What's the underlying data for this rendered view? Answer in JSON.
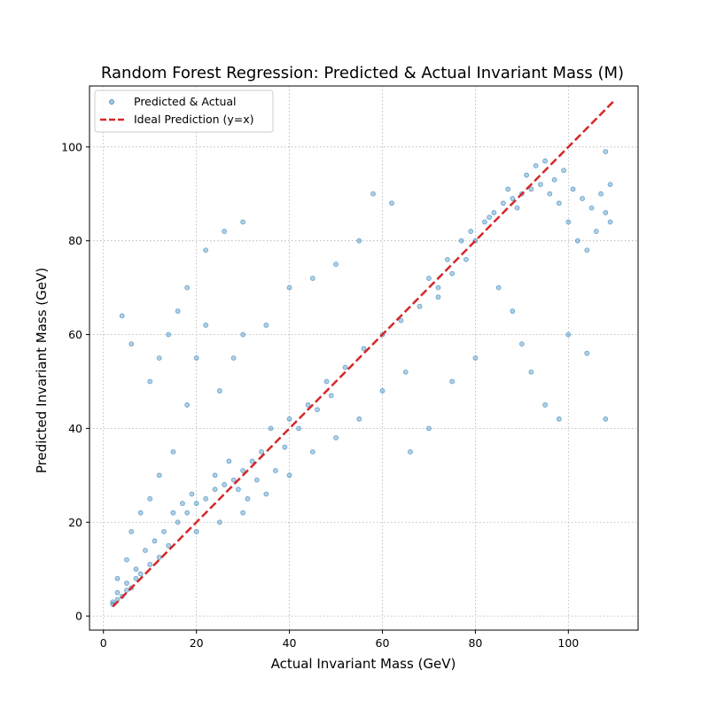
{
  "chart_data": {
    "type": "scatter",
    "title": "Random Forest Regression: Predicted & Actual Invariant Mass (M)",
    "xlabel": "Actual Invariant Mass (GeV)",
    "ylabel": "Predicted Invariant Mass (GeV)",
    "xlim": [
      -3,
      115
    ],
    "ylim": [
      -3,
      113
    ],
    "xticks": [
      0,
      20,
      40,
      60,
      80,
      100
    ],
    "yticks": [
      0,
      20,
      40,
      60,
      80,
      100
    ],
    "grid": true,
    "legend_position": "top-left",
    "series": [
      {
        "name": "Predicted & Actual",
        "kind": "scatter",
        "color": "#1f77b4",
        "points": [
          [
            2,
            2.5
          ],
          [
            3,
            3.5
          ],
          [
            4,
            4.2
          ],
          [
            5,
            5.5
          ],
          [
            6,
            6
          ],
          [
            7,
            8
          ],
          [
            8,
            9
          ],
          [
            10,
            11
          ],
          [
            12,
            12.5
          ],
          [
            14,
            15
          ],
          [
            3,
            8
          ],
          [
            5,
            12
          ],
          [
            6,
            18
          ],
          [
            8,
            22
          ],
          [
            10,
            25
          ],
          [
            12,
            30
          ],
          [
            15,
            35
          ],
          [
            18,
            45
          ],
          [
            20,
            55
          ],
          [
            22,
            62
          ],
          [
            16,
            20
          ],
          [
            18,
            22
          ],
          [
            20,
            24
          ],
          [
            22,
            25
          ],
          [
            24,
            27
          ],
          [
            26,
            28
          ],
          [
            28,
            29
          ],
          [
            30,
            31
          ],
          [
            32,
            33
          ],
          [
            34,
            35
          ],
          [
            20,
            18
          ],
          [
            25,
            20
          ],
          [
            30,
            22
          ],
          [
            35,
            26
          ],
          [
            40,
            30
          ],
          [
            45,
            35
          ],
          [
            50,
            38
          ],
          [
            55,
            42
          ],
          [
            60,
            48
          ],
          [
            65,
            52
          ],
          [
            36,
            40
          ],
          [
            40,
            42
          ],
          [
            44,
            45
          ],
          [
            48,
            50
          ],
          [
            52,
            53
          ],
          [
            56,
            57
          ],
          [
            60,
            60
          ],
          [
            64,
            63
          ],
          [
            68,
            66
          ],
          [
            72,
            70
          ],
          [
            75,
            73
          ],
          [
            78,
            76
          ],
          [
            80,
            80
          ],
          [
            82,
            84
          ],
          [
            84,
            86
          ],
          [
            86,
            88
          ],
          [
            88,
            89
          ],
          [
            90,
            90
          ],
          [
            92,
            91
          ],
          [
            94,
            92
          ],
          [
            96,
            90
          ],
          [
            98,
            88
          ],
          [
            100,
            84
          ],
          [
            102,
            80
          ],
          [
            104,
            78
          ],
          [
            106,
            82
          ],
          [
            108,
            86
          ],
          [
            100,
            60
          ],
          [
            104,
            56
          ],
          [
            108,
            42
          ],
          [
            85,
            70
          ],
          [
            88,
            65
          ],
          [
            90,
            58
          ],
          [
            92,
            52
          ],
          [
            95,
            45
          ],
          [
            98,
            42
          ],
          [
            80,
            55
          ],
          [
            75,
            50
          ],
          [
            70,
            40
          ],
          [
            66,
            35
          ],
          [
            10,
            50
          ],
          [
            12,
            55
          ],
          [
            14,
            60
          ],
          [
            16,
            65
          ],
          [
            18,
            70
          ],
          [
            22,
            78
          ],
          [
            26,
            82
          ],
          [
            30,
            84
          ],
          [
            4,
            64
          ],
          [
            6,
            58
          ],
          [
            40,
            70
          ],
          [
            45,
            72
          ],
          [
            50,
            75
          ],
          [
            55,
            80
          ],
          [
            58,
            90
          ],
          [
            62,
            88
          ],
          [
            30,
            60
          ],
          [
            35,
            62
          ],
          [
            25,
            48
          ],
          [
            28,
            55
          ],
          [
            2,
            3
          ],
          [
            3,
            5
          ],
          [
            5,
            7
          ],
          [
            7,
            10
          ],
          [
            9,
            14
          ],
          [
            11,
            16
          ],
          [
            13,
            18
          ],
          [
            15,
            22
          ],
          [
            17,
            24
          ],
          [
            19,
            26
          ],
          [
            24,
            30
          ],
          [
            27,
            33
          ],
          [
            29,
            27
          ],
          [
            31,
            25
          ],
          [
            33,
            29
          ],
          [
            37,
            31
          ],
          [
            39,
            36
          ],
          [
            42,
            40
          ],
          [
            46,
            44
          ],
          [
            49,
            47
          ],
          [
            70,
            72
          ],
          [
            72,
            68
          ],
          [
            74,
            76
          ],
          [
            77,
            80
          ],
          [
            79,
            82
          ],
          [
            83,
            85
          ],
          [
            87,
            91
          ],
          [
            89,
            87
          ],
          [
            91,
            94
          ],
          [
            93,
            96
          ],
          [
            95,
            97
          ],
          [
            97,
            93
          ],
          [
            99,
            95
          ],
          [
            101,
            91
          ],
          [
            103,
            89
          ],
          [
            105,
            87
          ],
          [
            107,
            90
          ],
          [
            109,
            92
          ],
          [
            109,
            84
          ],
          [
            108,
            99
          ]
        ]
      },
      {
        "name": "Ideal Prediction (y=x)",
        "kind": "line",
        "color": "#d62728",
        "x": [
          2,
          110
        ],
        "y": [
          2,
          110
        ]
      }
    ]
  }
}
